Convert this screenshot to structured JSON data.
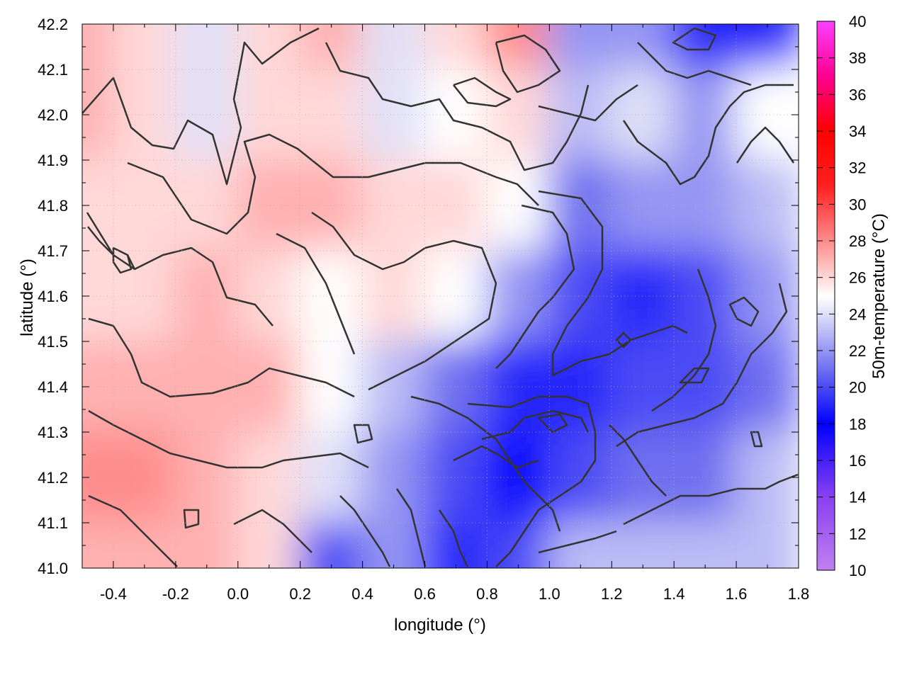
{
  "chart_data": {
    "type": "heatmap",
    "xlabel": "longitude (°)",
    "ylabel": "latitude (°)",
    "colorbar_label": "50m-temperature (°C)",
    "xlim": [
      -0.5,
      1.8
    ],
    "ylim": [
      41.0,
      42.2
    ],
    "clim": [
      10,
      40
    ],
    "x_ticks": [
      -0.4,
      -0.2,
      0.0,
      0.2,
      0.4,
      0.6,
      0.8,
      1.0,
      1.2,
      1.4,
      1.6,
      1.8
    ],
    "x_tick_labels": [
      "-0.4",
      "-0.2",
      "0.0",
      "0.2",
      "0.4",
      "0.6",
      "0.8",
      "1.0",
      "1.2",
      "1.4",
      "1.6",
      "1.8"
    ],
    "y_ticks": [
      41.0,
      41.1,
      41.2,
      41.3,
      41.4,
      41.5,
      41.6,
      41.7,
      41.8,
      41.9,
      42.0,
      42.1,
      42.2
    ],
    "y_tick_labels": [
      "41.0",
      "41.1",
      "41.2",
      "41.3",
      "41.4",
      "41.5",
      "41.6",
      "41.7",
      "41.8",
      "41.9",
      "42.0",
      "42.1",
      "42.2"
    ],
    "cb_ticks": [
      10,
      12,
      14,
      16,
      18,
      20,
      22,
      24,
      26,
      28,
      30,
      32,
      34,
      36,
      38,
      40
    ],
    "cb_tick_labels": [
      "10",
      "12",
      "14",
      "16",
      "18",
      "20",
      "22",
      "24",
      "26",
      "28",
      "30",
      "32",
      "34",
      "36",
      "38",
      "40"
    ],
    "colormap": [
      {
        "v": 10,
        "c": "#c080f0"
      },
      {
        "v": 14,
        "c": "#8a40f0"
      },
      {
        "v": 18,
        "c": "#0000ff"
      },
      {
        "v": 21,
        "c": "#7070f0"
      },
      {
        "v": 24,
        "c": "#e0e0f8"
      },
      {
        "v": 25,
        "c": "#ffffff"
      },
      {
        "v": 27,
        "c": "#ffb0b0"
      },
      {
        "v": 31,
        "c": "#ff2020"
      },
      {
        "v": 34,
        "c": "#ff0000"
      },
      {
        "v": 37,
        "c": "#ff0090"
      },
      {
        "v": 40,
        "c": "#ff40ff"
      }
    ],
    "grid": true,
    "field_grid": {
      "lons": [
        -0.5,
        -0.3,
        -0.1,
        0.1,
        0.3,
        0.5,
        0.7,
        0.9,
        1.1,
        1.3,
        1.5,
        1.7
      ],
      "lats": [
        42.2,
        42.0,
        41.8,
        41.6,
        41.4,
        41.2,
        41.0
      ],
      "temps": [
        [
          27,
          26,
          24,
          26,
          27,
          24,
          26,
          28,
          22,
          22,
          19,
          19
        ],
        [
          27,
          26,
          24,
          26,
          26,
          24,
          25,
          26,
          23,
          24,
          22,
          25
        ],
        [
          26,
          26,
          26,
          27,
          27,
          26,
          26,
          25,
          21,
          22,
          22,
          23
        ],
        [
          26,
          26,
          27,
          26,
          25,
          26,
          25,
          22,
          20,
          19,
          20,
          22
        ],
        [
          27,
          27,
          27,
          27,
          25,
          23,
          21,
          19,
          19,
          20,
          20,
          21
        ],
        [
          28,
          28,
          27,
          26,
          24,
          22,
          20,
          18,
          20,
          21,
          21,
          23
        ],
        [
          27,
          27,
          27,
          26,
          20,
          22,
          19,
          20,
          23,
          23,
          23,
          23
        ]
      ]
    }
  }
}
